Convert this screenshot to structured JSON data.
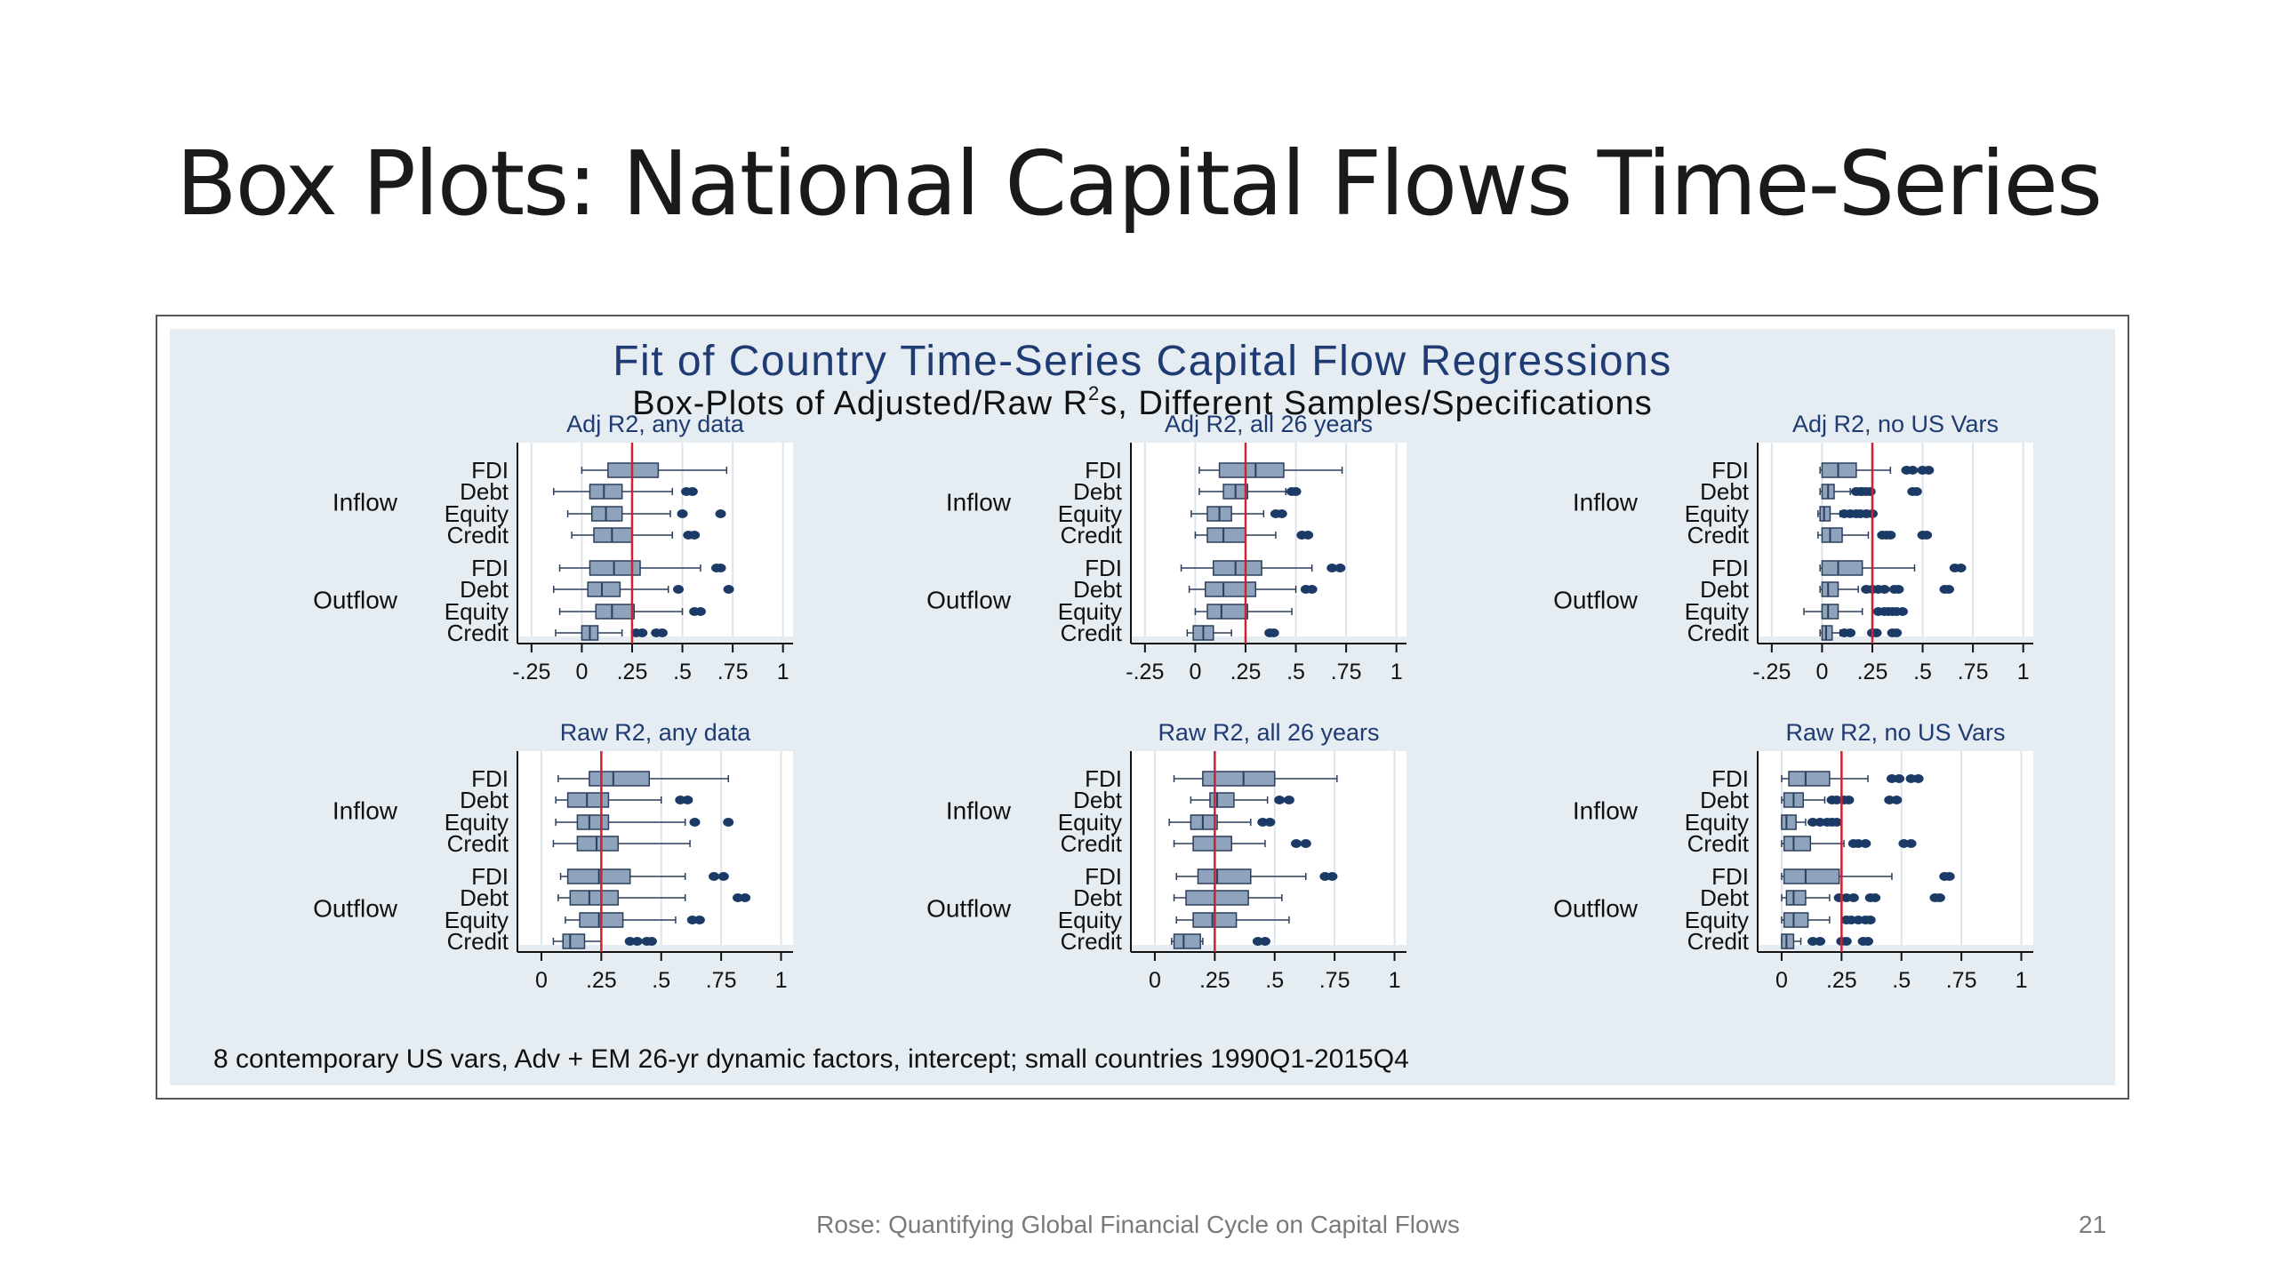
{
  "slide": {
    "title": "Box Plots: National Capital Flows Time-Series",
    "footer": "Rose: Quantifying Global Financial Cycle on Capital Flows",
    "page_number": "21"
  },
  "colors": {
    "title": "#1f3b73",
    "box_fill": "#8fa4bc",
    "box_stroke": "#2c3e5c",
    "outlier": "#1b3a66",
    "median_line": "#cc2233",
    "panel_bg": "#ffffff",
    "figure_bg": "#e5ecf2"
  },
  "chart_data": {
    "type": "boxplot",
    "title": "Fit of Country Time-Series Capital Flow Regressions",
    "subtitle_parts": [
      "Box-Plots of Adjusted/Raw R",
      "2",
      "s, Different Samples/Specifications"
    ],
    "note": "8 contemporary US vars, Adv + EM 26-yr dynamic factors, intercept; small countries 1990Q1-2015Q4",
    "groups": [
      "Inflow",
      "Outflow"
    ],
    "categories": [
      "FDI",
      "Debt",
      "Equity",
      "Credit"
    ],
    "reference_line": 0.25,
    "panels": [
      {
        "title": "Adj R2, any data",
        "xlim": [
          -0.32,
          1.05
        ],
        "ticks": [
          -0.25,
          0,
          0.25,
          0.5,
          0.75,
          1
        ],
        "tick_labels": [
          "-.25",
          "0",
          ".25",
          ".5",
          ".75",
          "1"
        ],
        "rows": [
          {
            "group": "Inflow",
            "cat": "FDI",
            "wl": 0.0,
            "q1": 0.13,
            "med": 0.25,
            "q3": 0.38,
            "wh": 0.72,
            "out": []
          },
          {
            "group": "Inflow",
            "cat": "Debt",
            "wl": -0.14,
            "q1": 0.04,
            "med": 0.11,
            "q3": 0.2,
            "wh": 0.45,
            "out": [
              0.52,
              0.55
            ]
          },
          {
            "group": "Inflow",
            "cat": "Equity",
            "wl": -0.07,
            "q1": 0.05,
            "med": 0.12,
            "q3": 0.2,
            "wh": 0.44,
            "out": [
              0.5,
              0.69
            ]
          },
          {
            "group": "Inflow",
            "cat": "Credit",
            "wl": -0.05,
            "q1": 0.06,
            "med": 0.15,
            "q3": 0.25,
            "wh": 0.45,
            "out": [
              0.53,
              0.56
            ]
          },
          {
            "group": "Outflow",
            "cat": "FDI",
            "wl": -0.11,
            "q1": 0.04,
            "med": 0.16,
            "q3": 0.29,
            "wh": 0.59,
            "out": [
              0.67,
              0.69
            ]
          },
          {
            "group": "Outflow",
            "cat": "Debt",
            "wl": -0.14,
            "q1": 0.03,
            "med": 0.1,
            "q3": 0.19,
            "wh": 0.43,
            "out": [
              0.48,
              0.73
            ]
          },
          {
            "group": "Outflow",
            "cat": "Equity",
            "wl": -0.11,
            "q1": 0.07,
            "med": 0.15,
            "q3": 0.26,
            "wh": 0.5,
            "out": [
              0.56,
              0.59
            ]
          },
          {
            "group": "Outflow",
            "cat": "Credit",
            "wl": -0.13,
            "q1": 0.0,
            "med": 0.04,
            "q3": 0.08,
            "wh": 0.2,
            "out": [
              0.27,
              0.3,
              0.37,
              0.4
            ]
          }
        ]
      },
      {
        "title": "Adj R2, all 26 years",
        "xlim": [
          -0.32,
          1.05
        ],
        "ticks": [
          -0.25,
          0,
          0.25,
          0.5,
          0.75,
          1
        ],
        "tick_labels": [
          "-.25",
          "0",
          ".25",
          ".5",
          ".75",
          "1"
        ],
        "rows": [
          {
            "group": "Inflow",
            "cat": "FDI",
            "wl": 0.02,
            "q1": 0.12,
            "med": 0.3,
            "q3": 0.44,
            "wh": 0.73,
            "out": []
          },
          {
            "group": "Inflow",
            "cat": "Debt",
            "wl": 0.02,
            "q1": 0.14,
            "med": 0.2,
            "q3": 0.26,
            "wh": 0.45,
            "out": [
              0.48,
              0.5
            ]
          },
          {
            "group": "Inflow",
            "cat": "Equity",
            "wl": -0.02,
            "q1": 0.06,
            "med": 0.12,
            "q3": 0.18,
            "wh": 0.34,
            "out": [
              0.4,
              0.43
            ]
          },
          {
            "group": "Inflow",
            "cat": "Credit",
            "wl": 0.0,
            "q1": 0.06,
            "med": 0.14,
            "q3": 0.25,
            "wh": 0.4,
            "out": [
              0.53,
              0.56
            ]
          },
          {
            "group": "Outflow",
            "cat": "FDI",
            "wl": -0.07,
            "q1": 0.09,
            "med": 0.2,
            "q3": 0.33,
            "wh": 0.58,
            "out": [
              0.68,
              0.72
            ]
          },
          {
            "group": "Outflow",
            "cat": "Debt",
            "wl": -0.03,
            "q1": 0.05,
            "med": 0.14,
            "q3": 0.3,
            "wh": 0.5,
            "out": [
              0.55,
              0.58
            ]
          },
          {
            "group": "Outflow",
            "cat": "Equity",
            "wl": 0.0,
            "q1": 0.06,
            "med": 0.13,
            "q3": 0.26,
            "wh": 0.48,
            "out": []
          },
          {
            "group": "Outflow",
            "cat": "Credit",
            "wl": -0.04,
            "q1": -0.01,
            "med": 0.04,
            "q3": 0.09,
            "wh": 0.18,
            "out": [
              0.37,
              0.39
            ]
          }
        ]
      },
      {
        "title": "Adj R2, no US Vars",
        "xlim": [
          -0.32,
          1.05
        ],
        "ticks": [
          -0.25,
          0,
          0.25,
          0.5,
          0.75,
          1
        ],
        "tick_labels": [
          "-.25",
          "0",
          ".25",
          ".5",
          ".75",
          "1"
        ],
        "rows": [
          {
            "group": "Inflow",
            "cat": "FDI",
            "wl": -0.01,
            "q1": 0.0,
            "med": 0.08,
            "q3": 0.17,
            "wh": 0.34,
            "out": [
              0.42,
              0.45,
              0.5,
              0.53
            ]
          },
          {
            "group": "Inflow",
            "cat": "Debt",
            "wl": -0.01,
            "q1": 0.0,
            "med": 0.03,
            "q3": 0.06,
            "wh": 0.14,
            "out": [
              0.17,
              0.19,
              0.2,
              0.22,
              0.24,
              0.45,
              0.47
            ]
          },
          {
            "group": "Inflow",
            "cat": "Equity",
            "wl": -0.02,
            "q1": -0.01,
            "med": 0.01,
            "q3": 0.04,
            "wh": 0.09,
            "out": [
              0.11,
              0.14,
              0.17,
              0.19,
              0.22,
              0.25
            ]
          },
          {
            "group": "Inflow",
            "cat": "Credit",
            "wl": -0.02,
            "q1": 0.0,
            "med": 0.04,
            "q3": 0.1,
            "wh": 0.23,
            "out": [
              0.3,
              0.32,
              0.34,
              0.5,
              0.52
            ]
          },
          {
            "group": "Outflow",
            "cat": "FDI",
            "wl": -0.01,
            "q1": 0.0,
            "med": 0.08,
            "q3": 0.2,
            "wh": 0.46,
            "out": [
              0.66,
              0.69
            ]
          },
          {
            "group": "Outflow",
            "cat": "Debt",
            "wl": -0.01,
            "q1": 0.0,
            "med": 0.03,
            "q3": 0.08,
            "wh": 0.18,
            "out": [
              0.22,
              0.25,
              0.28,
              0.31,
              0.36,
              0.38,
              0.61,
              0.63
            ]
          },
          {
            "group": "Outflow",
            "cat": "Equity",
            "wl": -0.09,
            "q1": 0.0,
            "med": 0.03,
            "q3": 0.08,
            "wh": 0.2,
            "out": [
              0.28,
              0.31,
              0.33,
              0.35,
              0.37,
              0.4
            ]
          },
          {
            "group": "Outflow",
            "cat": "Credit",
            "wl": -0.01,
            "q1": 0.0,
            "med": 0.02,
            "q3": 0.05,
            "wh": 0.09,
            "out": [
              0.11,
              0.14,
              0.25,
              0.27,
              0.35,
              0.37
            ]
          }
        ]
      },
      {
        "title": "Raw R2, any data",
        "xlim": [
          -0.1,
          1.05
        ],
        "ticks": [
          0,
          0.25,
          0.5,
          0.75,
          1
        ],
        "tick_labels": [
          "0",
          ".25",
          ".5",
          ".75",
          "1"
        ],
        "rows": [
          {
            "group": "Inflow",
            "cat": "FDI",
            "wl": 0.07,
            "q1": 0.2,
            "med": 0.3,
            "q3": 0.45,
            "wh": 0.78,
            "out": []
          },
          {
            "group": "Inflow",
            "cat": "Debt",
            "wl": 0.06,
            "q1": 0.11,
            "med": 0.19,
            "q3": 0.28,
            "wh": 0.5,
            "out": [
              0.58,
              0.61
            ]
          },
          {
            "group": "Inflow",
            "cat": "Equity",
            "wl": 0.06,
            "q1": 0.15,
            "med": 0.2,
            "q3": 0.28,
            "wh": 0.6,
            "out": [
              0.64,
              0.78
            ]
          },
          {
            "group": "Inflow",
            "cat": "Credit",
            "wl": 0.05,
            "q1": 0.15,
            "med": 0.23,
            "q3": 0.32,
            "wh": 0.62,
            "out": []
          },
          {
            "group": "Outflow",
            "cat": "FDI",
            "wl": 0.08,
            "q1": 0.11,
            "med": 0.24,
            "q3": 0.37,
            "wh": 0.6,
            "out": [
              0.72,
              0.76
            ]
          },
          {
            "group": "Outflow",
            "cat": "Debt",
            "wl": 0.07,
            "q1": 0.12,
            "med": 0.2,
            "q3": 0.32,
            "wh": 0.6,
            "out": [
              0.82,
              0.85
            ]
          },
          {
            "group": "Outflow",
            "cat": "Equity",
            "wl": 0.1,
            "q1": 0.16,
            "med": 0.24,
            "q3": 0.34,
            "wh": 0.56,
            "out": [
              0.63,
              0.66
            ]
          },
          {
            "group": "Outflow",
            "cat": "Credit",
            "wl": 0.05,
            "q1": 0.09,
            "med": 0.12,
            "q3": 0.18,
            "wh": 0.25,
            "out": [
              0.37,
              0.4,
              0.44,
              0.46
            ]
          }
        ]
      },
      {
        "title": "Raw R2, all 26 years",
        "xlim": [
          -0.1,
          1.05
        ],
        "ticks": [
          0,
          0.25,
          0.5,
          0.75,
          1
        ],
        "tick_labels": [
          "0",
          ".25",
          ".5",
          ".75",
          "1"
        ],
        "rows": [
          {
            "group": "Inflow",
            "cat": "FDI",
            "wl": 0.08,
            "q1": 0.2,
            "med": 0.37,
            "q3": 0.5,
            "wh": 0.76,
            "out": []
          },
          {
            "group": "Inflow",
            "cat": "Debt",
            "wl": 0.15,
            "q1": 0.23,
            "med": 0.26,
            "q3": 0.33,
            "wh": 0.47,
            "out": [
              0.52,
              0.56
            ]
          },
          {
            "group": "Inflow",
            "cat": "Equity",
            "wl": 0.06,
            "q1": 0.15,
            "med": 0.2,
            "q3": 0.26,
            "wh": 0.4,
            "out": [
              0.45,
              0.48
            ]
          },
          {
            "group": "Inflow",
            "cat": "Credit",
            "wl": 0.08,
            "q1": 0.16,
            "med": 0.25,
            "q3": 0.32,
            "wh": 0.46,
            "out": [
              0.59,
              0.63
            ]
          },
          {
            "group": "Outflow",
            "cat": "FDI",
            "wl": 0.09,
            "q1": 0.18,
            "med": 0.26,
            "q3": 0.4,
            "wh": 0.63,
            "out": [
              0.71,
              0.74
            ]
          },
          {
            "group": "Outflow",
            "cat": "Debt",
            "wl": 0.08,
            "q1": 0.13,
            "med": 0.25,
            "q3": 0.39,
            "wh": 0.53,
            "out": []
          },
          {
            "group": "Outflow",
            "cat": "Equity",
            "wl": 0.09,
            "q1": 0.16,
            "med": 0.24,
            "q3": 0.34,
            "wh": 0.56,
            "out": []
          },
          {
            "group": "Outflow",
            "cat": "Credit",
            "wl": 0.07,
            "q1": 0.08,
            "med": 0.12,
            "q3": 0.19,
            "wh": 0.2,
            "out": [
              0.43,
              0.46
            ]
          }
        ]
      },
      {
        "title": "Raw R2, no US Vars",
        "xlim": [
          -0.1,
          1.05
        ],
        "ticks": [
          0,
          0.25,
          0.5,
          0.75,
          1
        ],
        "tick_labels": [
          "0",
          ".25",
          ".5",
          ".75",
          "1"
        ],
        "rows": [
          {
            "group": "Inflow",
            "cat": "FDI",
            "wl": 0.0,
            "q1": 0.03,
            "med": 0.1,
            "q3": 0.2,
            "wh": 0.36,
            "out": [
              0.46,
              0.49,
              0.54,
              0.57
            ]
          },
          {
            "group": "Inflow",
            "cat": "Debt",
            "wl": 0.0,
            "q1": 0.01,
            "med": 0.05,
            "q3": 0.09,
            "wh": 0.18,
            "out": [
              0.21,
              0.23,
              0.26,
              0.28,
              0.45,
              0.48
            ]
          },
          {
            "group": "Inflow",
            "cat": "Equity",
            "wl": 0.0,
            "q1": 0.0,
            "med": 0.02,
            "q3": 0.06,
            "wh": 0.1,
            "out": [
              0.13,
              0.16,
              0.19,
              0.21,
              0.23
            ]
          },
          {
            "group": "Inflow",
            "cat": "Credit",
            "wl": 0.0,
            "q1": 0.01,
            "med": 0.05,
            "q3": 0.12,
            "wh": 0.26,
            "out": [
              0.3,
              0.32,
              0.35,
              0.51,
              0.54
            ]
          },
          {
            "group": "Outflow",
            "cat": "FDI",
            "wl": 0.0,
            "q1": 0.01,
            "med": 0.1,
            "q3": 0.24,
            "wh": 0.46,
            "out": [
              0.68,
              0.7
            ]
          },
          {
            "group": "Outflow",
            "cat": "Debt",
            "wl": 0.0,
            "q1": 0.02,
            "med": 0.05,
            "q3": 0.1,
            "wh": 0.2,
            "out": [
              0.24,
              0.27,
              0.3,
              0.37,
              0.39,
              0.64,
              0.66
            ]
          },
          {
            "group": "Outflow",
            "cat": "Equity",
            "wl": 0.0,
            "q1": 0.01,
            "med": 0.05,
            "q3": 0.11,
            "wh": 0.2,
            "out": [
              0.27,
              0.29,
              0.32,
              0.35,
              0.37
            ]
          },
          {
            "group": "Outflow",
            "cat": "Credit",
            "wl": 0.0,
            "q1": 0.0,
            "med": 0.02,
            "q3": 0.05,
            "wh": 0.08,
            "out": [
              0.13,
              0.16,
              0.25,
              0.27,
              0.34,
              0.36
            ]
          }
        ]
      }
    ]
  }
}
